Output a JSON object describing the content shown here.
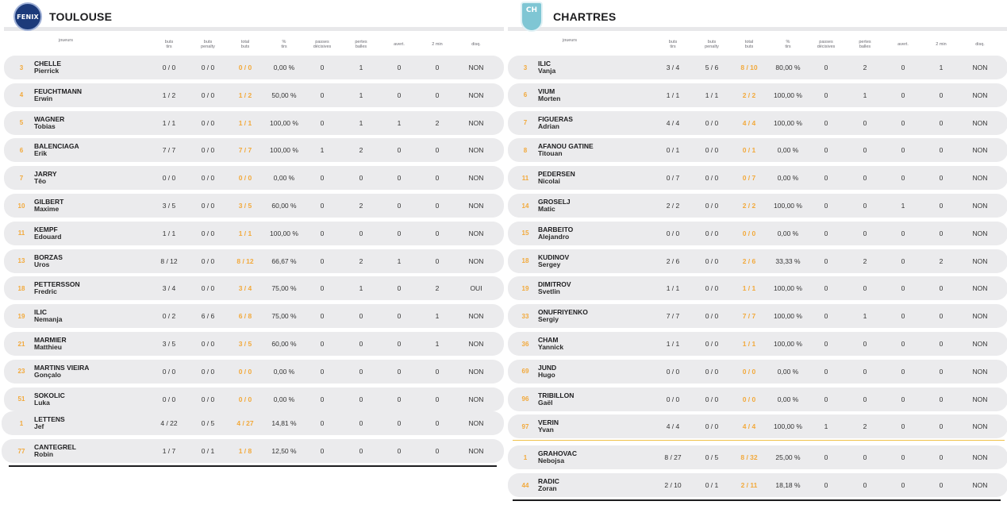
{
  "columns": {
    "joueurs": "joueurs",
    "buts_tirs": [
      "buts",
      "tirs"
    ],
    "buts_penalty": [
      "buts",
      "penalty"
    ],
    "total_buts": [
      "total",
      "buts"
    ],
    "pct_tirs": [
      "%",
      "tirs"
    ],
    "passes_decisives": [
      "passes",
      "décisives"
    ],
    "pertes_balles": [
      "pertes",
      "balles"
    ],
    "avert": [
      "avert."
    ],
    "deux_min": [
      "2 min"
    ],
    "disq": [
      "disq."
    ]
  },
  "colors": {
    "accent": "#f2a93b",
    "row_bg": "#ebebed",
    "left_sep": "#1d1d1f",
    "right_sep": "#f0c24a"
  },
  "teams": [
    {
      "name": "TOULOUSE",
      "logo_text": "FENIX",
      "logo_icon": "fenix-logo",
      "players": [
        {
          "num": "3",
          "last": "CHELLE",
          "first": "Pierrick",
          "bt": "0 / 0",
          "bp": "0 / 0",
          "tot": "0 / 0",
          "pct": "0,00 %",
          "pd": "0",
          "pb": "1",
          "av": "0",
          "m2": "0",
          "dq": "NON"
        },
        {
          "num": "4",
          "last": "FEUCHTMANN",
          "first": "Erwin",
          "bt": "1 / 2",
          "bp": "0 / 0",
          "tot": "1 / 2",
          "pct": "50,00 %",
          "pd": "0",
          "pb": "1",
          "av": "0",
          "m2": "0",
          "dq": "NON"
        },
        {
          "num": "5",
          "last": "WAGNER",
          "first": "Tobias",
          "bt": "1 / 1",
          "bp": "0 / 0",
          "tot": "1 / 1",
          "pct": "100,00 %",
          "pd": "0",
          "pb": "1",
          "av": "1",
          "m2": "2",
          "dq": "NON"
        },
        {
          "num": "6",
          "last": "BALENCIAGA",
          "first": "Erik",
          "bt": "7 / 7",
          "bp": "0 / 0",
          "tot": "7 / 7",
          "pct": "100,00 %",
          "pd": "1",
          "pb": "2",
          "av": "0",
          "m2": "0",
          "dq": "NON"
        },
        {
          "num": "7",
          "last": "JARRY",
          "first": "Têo",
          "bt": "0 / 0",
          "bp": "0 / 0",
          "tot": "0 / 0",
          "pct": "0,00 %",
          "pd": "0",
          "pb": "0",
          "av": "0",
          "m2": "0",
          "dq": "NON"
        },
        {
          "num": "10",
          "last": "GILBERT",
          "first": "Maxime",
          "bt": "3 / 5",
          "bp": "0 / 0",
          "tot": "3 / 5",
          "pct": "60,00 %",
          "pd": "0",
          "pb": "2",
          "av": "0",
          "m2": "0",
          "dq": "NON"
        },
        {
          "num": "11",
          "last": "KEMPF",
          "first": "Edouard",
          "bt": "1 / 1",
          "bp": "0 / 0",
          "tot": "1 / 1",
          "pct": "100,00 %",
          "pd": "0",
          "pb": "0",
          "av": "0",
          "m2": "0",
          "dq": "NON"
        },
        {
          "num": "13",
          "last": "BORZAS",
          "first": "Uros",
          "bt": "8 / 12",
          "bp": "0 / 0",
          "tot": "8 / 12",
          "pct": "66,67 %",
          "pd": "0",
          "pb": "2",
          "av": "1",
          "m2": "0",
          "dq": "NON"
        },
        {
          "num": "18",
          "last": "PETTERSSON",
          "first": "Fredric",
          "bt": "3 / 4",
          "bp": "0 / 0",
          "tot": "3 / 4",
          "pct": "75,00 %",
          "pd": "0",
          "pb": "1",
          "av": "0",
          "m2": "2",
          "dq": "OUI"
        },
        {
          "num": "19",
          "last": "ILIC",
          "first": "Nemanja",
          "bt": "0 / 2",
          "bp": "6 / 6",
          "tot": "6 / 8",
          "pct": "75,00 %",
          "pd": "0",
          "pb": "0",
          "av": "0",
          "m2": "1",
          "dq": "NON"
        },
        {
          "num": "21",
          "last": "MARMIER",
          "first": "Matthieu",
          "bt": "3 / 5",
          "bp": "0 / 0",
          "tot": "3 / 5",
          "pct": "60,00 %",
          "pd": "0",
          "pb": "0",
          "av": "0",
          "m2": "1",
          "dq": "NON"
        },
        {
          "num": "23",
          "last": "MARTINS VIEIRA",
          "first": "Gonçalo",
          "bt": "0 / 0",
          "bp": "0 / 0",
          "tot": "0 / 0",
          "pct": "0,00 %",
          "pd": "0",
          "pb": "0",
          "av": "0",
          "m2": "0",
          "dq": "NON"
        },
        {
          "num": "51",
          "last": "SOKOLIC",
          "first": "Luka",
          "bt": "0 / 0",
          "bp": "0 / 0",
          "tot": "0 / 0",
          "pct": "0,00 %",
          "pd": "0",
          "pb": "0",
          "av": "0",
          "m2": "0",
          "dq": "NON"
        }
      ],
      "goalkeepers": [
        {
          "num": "1",
          "last": "LETTENS",
          "first": "Jef",
          "bt": "4 / 22",
          "bp": "0 / 5",
          "tot": "4 / 27",
          "pct": "14,81 %",
          "pd": "0",
          "pb": "0",
          "av": "0",
          "m2": "0",
          "dq": "NON"
        },
        {
          "num": "77",
          "last": "CANTEGREL",
          "first": "Robin",
          "bt": "1 / 7",
          "bp": "0 / 1",
          "tot": "1 / 8",
          "pct": "12,50 %",
          "pd": "0",
          "pb": "0",
          "av": "0",
          "m2": "0",
          "dq": "NON"
        }
      ]
    },
    {
      "name": "CHARTRES",
      "logo_text": "CH",
      "logo_icon": "chartres-shield-logo",
      "players": [
        {
          "num": "3",
          "last": "ILIC",
          "first": "Vanja",
          "bt": "3 / 4",
          "bp": "5 / 6",
          "tot": "8 / 10",
          "pct": "80,00 %",
          "pd": "0",
          "pb": "2",
          "av": "0",
          "m2": "1",
          "dq": "NON"
        },
        {
          "num": "6",
          "last": "VIUM",
          "first": "Morten",
          "bt": "1 / 1",
          "bp": "1 / 1",
          "tot": "2 / 2",
          "pct": "100,00 %",
          "pd": "0",
          "pb": "1",
          "av": "0",
          "m2": "0",
          "dq": "NON"
        },
        {
          "num": "7",
          "last": "FIGUERAS",
          "first": "Adrian",
          "bt": "4 / 4",
          "bp": "0 / 0",
          "tot": "4 / 4",
          "pct": "100,00 %",
          "pd": "0",
          "pb": "0",
          "av": "0",
          "m2": "0",
          "dq": "NON"
        },
        {
          "num": "8",
          "last": "AFANOU GATINE",
          "first": "Titouan",
          "bt": "0 / 1",
          "bp": "0 / 0",
          "tot": "0 / 1",
          "pct": "0,00 %",
          "pd": "0",
          "pb": "0",
          "av": "0",
          "m2": "0",
          "dq": "NON"
        },
        {
          "num": "11",
          "last": "PEDERSEN",
          "first": "Nicolai",
          "bt": "0 / 7",
          "bp": "0 / 0",
          "tot": "0 / 7",
          "pct": "0,00 %",
          "pd": "0",
          "pb": "0",
          "av": "0",
          "m2": "0",
          "dq": "NON"
        },
        {
          "num": "14",
          "last": "GROSELJ",
          "first": "Matic",
          "bt": "2 / 2",
          "bp": "0 / 0",
          "tot": "2 / 2",
          "pct": "100,00 %",
          "pd": "0",
          "pb": "0",
          "av": "1",
          "m2": "0",
          "dq": "NON"
        },
        {
          "num": "15",
          "last": "BARBEITO",
          "first": "Alejandro",
          "bt": "0 / 0",
          "bp": "0 / 0",
          "tot": "0 / 0",
          "pct": "0,00 %",
          "pd": "0",
          "pb": "0",
          "av": "0",
          "m2": "0",
          "dq": "NON"
        },
        {
          "num": "18",
          "last": "KUDINOV",
          "first": "Sergey",
          "bt": "2 / 6",
          "bp": "0 / 0",
          "tot": "2 / 6",
          "pct": "33,33 %",
          "pd": "0",
          "pb": "2",
          "av": "0",
          "m2": "2",
          "dq": "NON"
        },
        {
          "num": "19",
          "last": "DIMITROV",
          "first": "Svetlin",
          "bt": "1 / 1",
          "bp": "0 / 0",
          "tot": "1 / 1",
          "pct": "100,00 %",
          "pd": "0",
          "pb": "0",
          "av": "0",
          "m2": "0",
          "dq": "NON"
        },
        {
          "num": "33",
          "last": "ONUFRIYENKO",
          "first": "Sergiy",
          "bt": "7 / 7",
          "bp": "0 / 0",
          "tot": "7 / 7",
          "pct": "100,00 %",
          "pd": "0",
          "pb": "1",
          "av": "0",
          "m2": "0",
          "dq": "NON"
        },
        {
          "num": "36",
          "last": "CHAM",
          "first": "Yannick",
          "bt": "1 / 1",
          "bp": "0 / 0",
          "tot": "1 / 1",
          "pct": "100,00 %",
          "pd": "0",
          "pb": "0",
          "av": "0",
          "m2": "0",
          "dq": "NON"
        },
        {
          "num": "69",
          "last": "JUND",
          "first": "Hugo",
          "bt": "0 / 0",
          "bp": "0 / 0",
          "tot": "0 / 0",
          "pct": "0,00 %",
          "pd": "0",
          "pb": "0",
          "av": "0",
          "m2": "0",
          "dq": "NON"
        },
        {
          "num": "96",
          "last": "TRIBILLON",
          "first": "Gaël",
          "bt": "0 / 0",
          "bp": "0 / 0",
          "tot": "0 / 0",
          "pct": "0,00 %",
          "pd": "0",
          "pb": "0",
          "av": "0",
          "m2": "0",
          "dq": "NON"
        },
        {
          "num": "97",
          "last": "VERIN",
          "first": "Yvan",
          "bt": "4 / 4",
          "bp": "0 / 0",
          "tot": "4 / 4",
          "pct": "100,00 %",
          "pd": "1",
          "pb": "2",
          "av": "0",
          "m2": "0",
          "dq": "NON"
        }
      ],
      "goalkeepers": [
        {
          "num": "1",
          "last": "GRAHOVAC",
          "first": "Nebojsa",
          "bt": "8 / 27",
          "bp": "0 / 5",
          "tot": "8 / 32",
          "pct": "25,00 %",
          "pd": "0",
          "pb": "0",
          "av": "0",
          "m2": "0",
          "dq": "NON"
        },
        {
          "num": "44",
          "last": "RADIC",
          "first": "Zoran",
          "bt": "2 / 10",
          "bp": "0 / 1",
          "tot": "2 / 11",
          "pct": "18,18 %",
          "pd": "0",
          "pb": "0",
          "av": "0",
          "m2": "0",
          "dq": "NON"
        }
      ]
    }
  ]
}
